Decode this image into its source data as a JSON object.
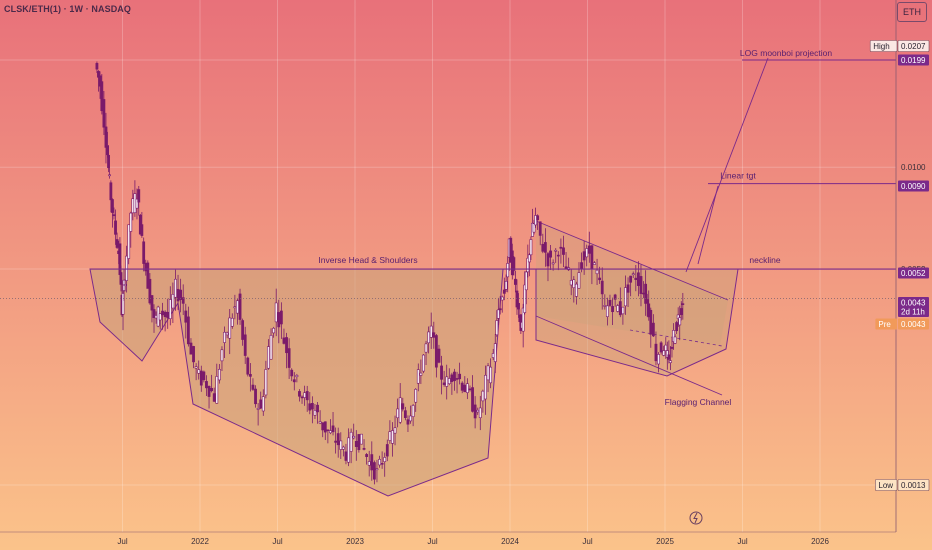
{
  "header": {
    "symbol": "CLSK/ETH(1) · 1W · NASDAQ",
    "unit_badge": "ETH"
  },
  "chart_data": {
    "type": "candlestick",
    "title": "",
    "y_scale": "log",
    "y_ticks": [
      "0.0100",
      "0.0052",
      "0.0013"
    ],
    "x_ticks": [
      "Jul",
      "2022",
      "Jul",
      "2023",
      "Jul",
      "2024",
      "Jul",
      "2025",
      "Jul",
      "2026"
    ],
    "price_tags": [
      {
        "label": "High",
        "value": "0.0207",
        "kind": "high"
      },
      {
        "label": "",
        "value": "0.0199",
        "kind": "line"
      },
      {
        "label": "",
        "value": "0.0090",
        "kind": "line"
      },
      {
        "label": "",
        "value": "0.0052",
        "kind": "line"
      },
      {
        "label": "",
        "value": "0.0043",
        "sub": "2d 11h",
        "kind": "last"
      },
      {
        "label": "Pre",
        "value": "0.0043",
        "kind": "pre"
      },
      {
        "label": "Low",
        "value": "0.0013",
        "kind": "low"
      }
    ],
    "annotations": [
      {
        "text": "LOG moonboi projection",
        "value": "0.0199"
      },
      {
        "text": "Linear tgt",
        "value": "0.0090"
      },
      {
        "text": "Inverse Head & Shoulders",
        "value": "0.0052"
      },
      {
        "text": "neckline",
        "value": "0.0052"
      },
      {
        "text": "Flagging Channel",
        "value": ""
      }
    ],
    "pattern_highlight": "Inverse Head & Shoulders",
    "grid": true,
    "background_gradient": [
      "#e8717a",
      "#fbc38a"
    ],
    "candle_up_color": "#7a1a6a",
    "candle_down_color": "#7a1a6a",
    "annotation_color": "#7b2a8a",
    "price_path": [
      [
        2021.33,
        0.0195
      ],
      [
        2021.36,
        0.017
      ],
      [
        2021.4,
        0.012
      ],
      [
        2021.42,
        0.009
      ],
      [
        2021.45,
        0.007
      ],
      [
        2021.48,
        0.0058
      ],
      [
        2021.5,
        0.004
      ],
      [
        2021.52,
        0.005
      ],
      [
        2021.56,
        0.0075
      ],
      [
        2021.6,
        0.0085
      ],
      [
        2021.63,
        0.0062
      ],
      [
        2021.67,
        0.0048
      ],
      [
        2021.71,
        0.0037
      ],
      [
        2021.75,
        0.004
      ],
      [
        2021.8,
        0.0038
      ],
      [
        2021.85,
        0.0046
      ],
      [
        2021.9,
        0.0042
      ],
      [
        2021.95,
        0.003
      ],
      [
        2022.0,
        0.0026
      ],
      [
        2022.05,
        0.0025
      ],
      [
        2022.1,
        0.0023
      ],
      [
        2022.15,
        0.0031
      ],
      [
        2022.2,
        0.0037
      ],
      [
        2022.25,
        0.0042
      ],
      [
        2022.3,
        0.0029
      ],
      [
        2022.35,
        0.0023
      ],
      [
        2022.4,
        0.0021
      ],
      [
        2022.45,
        0.0031
      ],
      [
        2022.5,
        0.0041
      ],
      [
        2022.55,
        0.0033
      ],
      [
        2022.6,
        0.0027
      ],
      [
        2022.65,
        0.0024
      ],
      [
        2022.7,
        0.0022
      ],
      [
        2022.75,
        0.0021
      ],
      [
        2022.8,
        0.0019
      ],
      [
        2022.85,
        0.0018
      ],
      [
        2022.9,
        0.0017
      ],
      [
        2022.95,
        0.0016
      ],
      [
        2023.0,
        0.0018
      ],
      [
        2023.05,
        0.0017
      ],
      [
        2023.1,
        0.0015
      ],
      [
        2023.15,
        0.0014
      ],
      [
        2023.2,
        0.0016
      ],
      [
        2023.25,
        0.0018
      ],
      [
        2023.3,
        0.0022
      ],
      [
        2023.35,
        0.002
      ],
      [
        2023.4,
        0.0024
      ],
      [
        2023.45,
        0.003
      ],
      [
        2023.5,
        0.0035
      ],
      [
        2023.55,
        0.0027
      ],
      [
        2023.6,
        0.0025
      ],
      [
        2023.65,
        0.0027
      ],
      [
        2023.7,
        0.0025
      ],
      [
        2023.75,
        0.0023
      ],
      [
        2023.8,
        0.002
      ],
      [
        2023.85,
        0.0025
      ],
      [
        2023.9,
        0.003
      ],
      [
        2023.93,
        0.004
      ],
      [
        2023.97,
        0.0045
      ],
      [
        2024.0,
        0.006
      ],
      [
        2024.03,
        0.005
      ],
      [
        2024.06,
        0.004
      ],
      [
        2024.08,
        0.0035
      ],
      [
        2024.11,
        0.005
      ],
      [
        2024.14,
        0.0064
      ],
      [
        2024.17,
        0.0072
      ],
      [
        2024.22,
        0.006
      ],
      [
        2024.27,
        0.0054
      ],
      [
        2024.32,
        0.006
      ],
      [
        2024.37,
        0.0052
      ],
      [
        2024.42,
        0.0046
      ],
      [
        2024.47,
        0.0055
      ],
      [
        2024.52,
        0.0058
      ],
      [
        2024.57,
        0.005
      ],
      [
        2024.62,
        0.004
      ],
      [
        2024.67,
        0.0042
      ],
      [
        2024.72,
        0.004
      ],
      [
        2024.77,
        0.0047
      ],
      [
        2024.82,
        0.005
      ],
      [
        2024.87,
        0.0045
      ],
      [
        2024.9,
        0.004
      ],
      [
        2024.95,
        0.003
      ],
      [
        2025.0,
        0.0032
      ],
      [
        2025.03,
        0.0028
      ],
      [
        2025.06,
        0.0034
      ],
      [
        2025.09,
        0.0038
      ],
      [
        2025.12,
        0.0043
      ]
    ]
  }
}
